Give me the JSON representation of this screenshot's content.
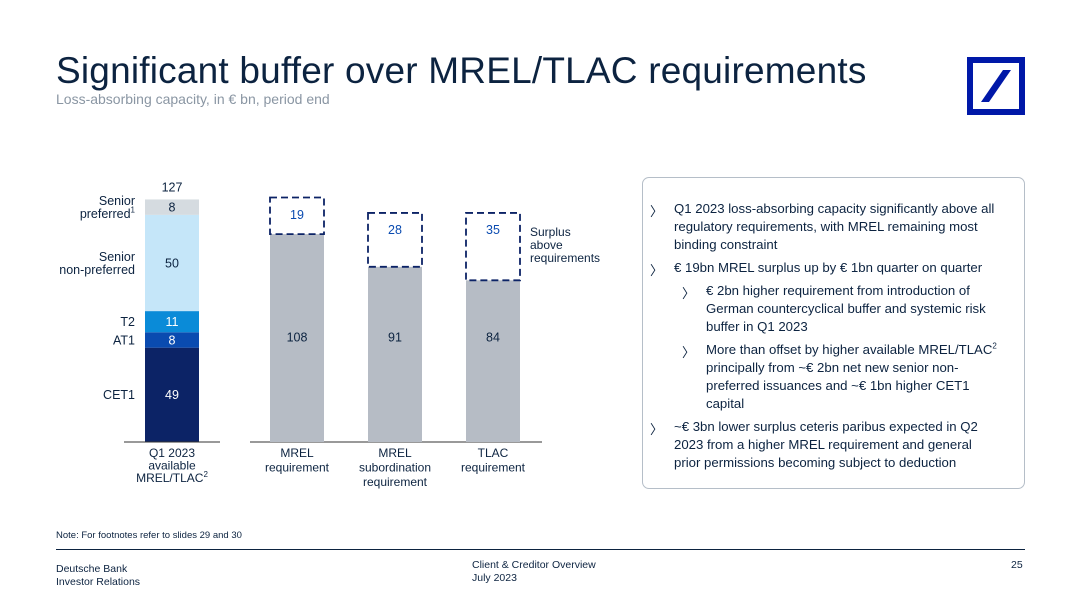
{
  "header": {
    "title": "Significant buffer over MREL/TLAC requirements",
    "subtitle": "Loss-absorbing capacity, in € bn, period end"
  },
  "chart_data": {
    "type": "bar",
    "unit": "€ bn",
    "stacked_bar": {
      "category_lines": [
        "Q1 2023",
        "available",
        "MREL/TLAC"
      ],
      "category_sup": "2",
      "total": "127",
      "segments": [
        {
          "name": "CET1",
          "value": 49,
          "color": "#0c2366"
        },
        {
          "name": "AT1",
          "value": 8,
          "color": "#0a4bb0"
        },
        {
          "name": "T2",
          "value": 11,
          "color": "#0a8bd8"
        },
        {
          "name": "Senior non-preferred",
          "label_lines": [
            "Senior",
            "non-preferred"
          ],
          "value": 50,
          "color": "#c5e6f9"
        },
        {
          "name": "Senior preferred",
          "label_lines": [
            "Senior",
            "preferred"
          ],
          "label_sup": "1",
          "value": 8,
          "color": "#d5dbe0"
        }
      ]
    },
    "requirement_bars": [
      {
        "category_lines": [
          "MREL",
          "requirement"
        ],
        "requirement": 108,
        "surplus": 19
      },
      {
        "category_lines": [
          "MREL",
          "subordination",
          "requirement"
        ],
        "requirement": 91,
        "surplus": 28
      },
      {
        "category_lines": [
          "TLAC",
          "requirement"
        ],
        "requirement": 84,
        "surplus": 35
      }
    ],
    "surplus_legend_lines": [
      "Surplus",
      "above",
      "requirements"
    ],
    "colors": {
      "requirement": "#b6bcc5",
      "surplus_border": "#0c2366",
      "text": "#0c2340",
      "surplus_text": "#0a4bb0"
    }
  },
  "panel": {
    "bullets": [
      {
        "level": 1,
        "lines": [
          "Q1 2023 loss-absorbing capacity significantly above all",
          "regulatory requirements, with MREL remaining most",
          "binding constraint"
        ]
      },
      {
        "level": 1,
        "lines": [
          "€ 19bn MREL surplus up by € 1bn quarter on quarter"
        ]
      },
      {
        "level": 2,
        "lines": [
          "€ 2bn higher requirement from introduction of",
          "German countercyclical buffer and systemic risk",
          "buffer in Q1 2023"
        ]
      },
      {
        "level": 2,
        "lines": [
          "More than offset by higher available MREL/TLAC",
          "principally from ~€ 2bn net new senior non-",
          "preferred issuances and ~€ 1bn higher CET1",
          "capital"
        ],
        "sup": {
          "line": 0,
          "text": "2"
        }
      },
      {
        "level": 1,
        "lines": [
          "~€ 3bn lower surplus ceteris paribus expected in Q2",
          "2023 from a higher MREL requirement and general",
          "prior permissions becoming subject to deduction"
        ]
      }
    ],
    "chevron": "〉"
  },
  "note": "Note: For footnotes refer to slides 29 and 30",
  "footer": {
    "left": [
      "Deutsche Bank",
      "Investor Relations"
    ],
    "center": [
      "Client & Creditor Overview",
      "July 2023"
    ],
    "page": "25"
  }
}
